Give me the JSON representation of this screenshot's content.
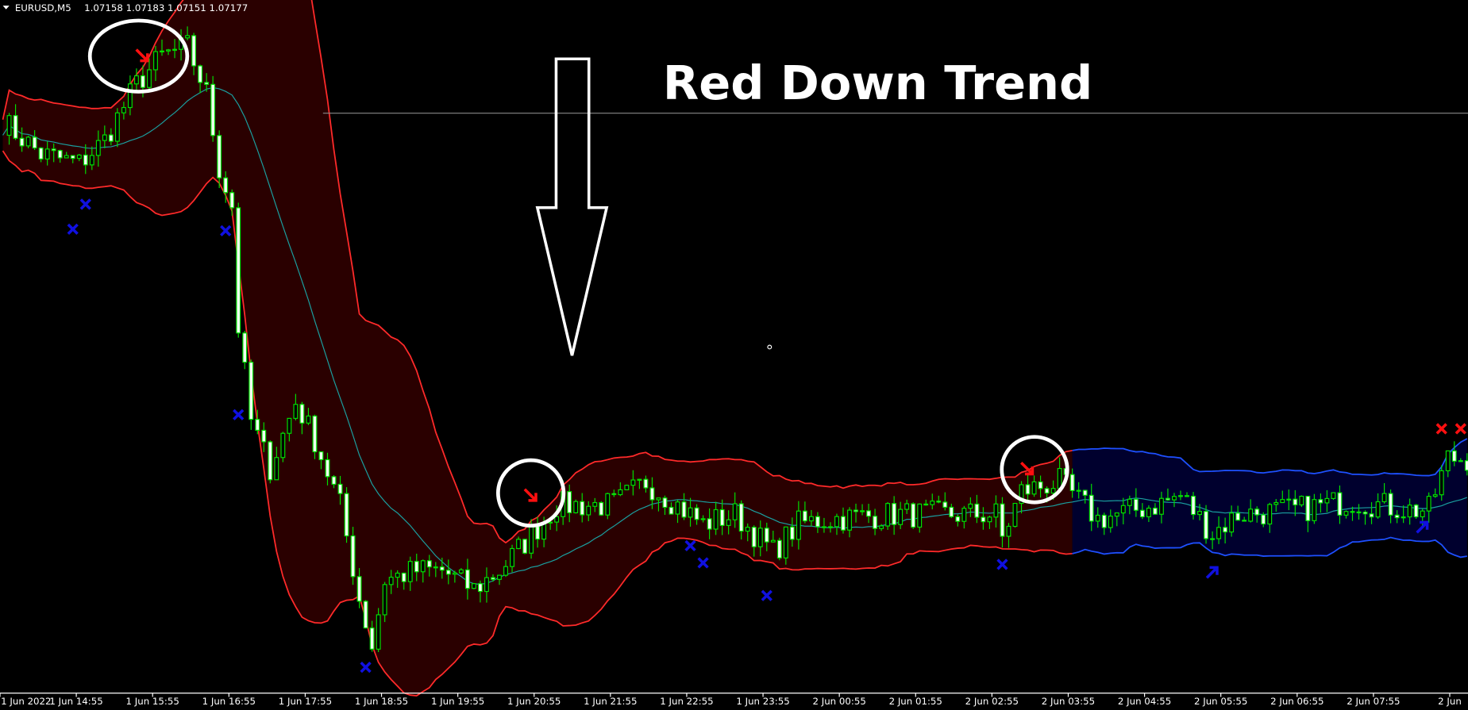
{
  "header": {
    "menu_icon": "triangle-down-icon",
    "symbol": "EURUSD,M5",
    "ohlc": "1.07158 1.07183 1.07151 1.07177"
  },
  "annotation_text": "Red Down Trend",
  "colors": {
    "up_trend_fill": "#2a0000",
    "up_trend_line": "#ff2a2a",
    "down_fill": "#00002e",
    "blue_line": "#1e50ff",
    "mid_line": "#1aa0a0",
    "candle": "#00e000",
    "bear_body": "#f0fff0",
    "background": "#000000",
    "marker_blue": "#1010e0",
    "marker_red": "#ff1010"
  },
  "chart_data": {
    "type": "candlestick",
    "symbol": "EURUSD",
    "timeframe": "M5",
    "indicator": "Bollinger-style bands colored by trend (red = down trend, blue = up trend)",
    "x_ticks": [
      "1 Jun 2022",
      "1 Jun 14:55",
      "1 Jun 15:55",
      "1 Jun 16:55",
      "1 Jun 17:55",
      "1 Jun 18:55",
      "1 Jun 19:55",
      "1 Jun 20:55",
      "1 Jun 21:55",
      "1 Jun 22:55",
      "1 Jun 23:55",
      "2 Jun 00:55",
      "2 Jun 01:55",
      "2 Jun 02:55",
      "2 Jun 03:55",
      "2 Jun 04:55",
      "2 Jun 05:55",
      "2 Jun 06:55",
      "2 Jun 07:55",
      "2 Jun"
    ],
    "trend_switch_bar": 168,
    "close_path": [
      [
        0,
        1.07609
      ],
      [
        6,
        1.07567
      ],
      [
        12,
        1.07555
      ],
      [
        16,
        1.07585
      ],
      [
        21,
        1.07657
      ],
      [
        25,
        1.07693
      ],
      [
        29,
        1.07705
      ],
      [
        32,
        1.07645
      ],
      [
        34,
        1.07549
      ],
      [
        36,
        1.07501
      ],
      [
        37,
        1.07345
      ],
      [
        39,
        1.07225
      ],
      [
        42,
        1.07165
      ],
      [
        46,
        1.07249
      ],
      [
        49,
        1.07201
      ],
      [
        53,
        1.07117
      ],
      [
        56,
        1.06997
      ],
      [
        58,
        1.06937
      ],
      [
        60,
        1.07021
      ],
      [
        65,
        1.07033
      ],
      [
        69,
        1.07033
      ],
      [
        74,
        1.07009
      ],
      [
        78,
        1.07033
      ],
      [
        82,
        1.07069
      ],
      [
        87,
        1.07117
      ],
      [
        91,
        1.07117
      ],
      [
        96,
        1.07117
      ],
      [
        101,
        1.07147
      ],
      [
        106,
        1.07117
      ],
      [
        110,
        1.07093
      ],
      [
        115,
        1.07105
      ],
      [
        121,
        1.07057
      ],
      [
        125,
        1.07093
      ],
      [
        129,
        1.07099
      ],
      [
        140,
        1.07105
      ],
      [
        147,
        1.07105
      ],
      [
        156,
        1.07105
      ],
      [
        157,
        1.07075
      ],
      [
        160,
        1.07135
      ],
      [
        166,
        1.07147
      ],
      [
        172,
        1.07099
      ],
      [
        181,
        1.07117
      ],
      [
        185,
        1.07129
      ],
      [
        190,
        1.07081
      ],
      [
        194,
        1.07105
      ],
      [
        203,
        1.07111
      ],
      [
        212,
        1.07123
      ],
      [
        221,
        1.07111
      ],
      [
        224,
        1.07111
      ],
      [
        227,
        1.07177
      ],
      [
        230,
        1.07177
      ]
    ],
    "signals": [
      {
        "type": "blue-cross",
        "bar": 11,
        "price": 1.07471
      },
      {
        "type": "blue-cross",
        "bar": 13,
        "price": 1.07503
      },
      {
        "type": "blue-cross",
        "bar": 35,
        "price": 1.07469
      },
      {
        "type": "blue-cross",
        "bar": 37,
        "price": 1.07233
      },
      {
        "type": "blue-cross",
        "bar": 57,
        "price": 1.06909
      },
      {
        "type": "blue-cross",
        "bar": 108,
        "price": 1.07065
      },
      {
        "type": "blue-cross",
        "bar": 110,
        "price": 1.07043
      },
      {
        "type": "blue-cross",
        "bar": 120,
        "price": 1.07001
      },
      {
        "type": "blue-cross",
        "bar": 157,
        "price": 1.07041
      },
      {
        "type": "red-arrow",
        "bar": 22,
        "price": 1.07693
      },
      {
        "type": "red-arrow",
        "bar": 83,
        "price": 1.07129
      },
      {
        "type": "red-arrow",
        "bar": 161,
        "price": 1.07163
      },
      {
        "type": "blue-arrow",
        "bar": 190,
        "price": 1.07031
      },
      {
        "type": "blue-arrow",
        "bar": 223,
        "price": 1.07089
      },
      {
        "type": "red-cross",
        "bar": 226,
        "price": 1.07215
      },
      {
        "type": "red-cross",
        "bar": 229,
        "price": 1.07215
      }
    ]
  }
}
